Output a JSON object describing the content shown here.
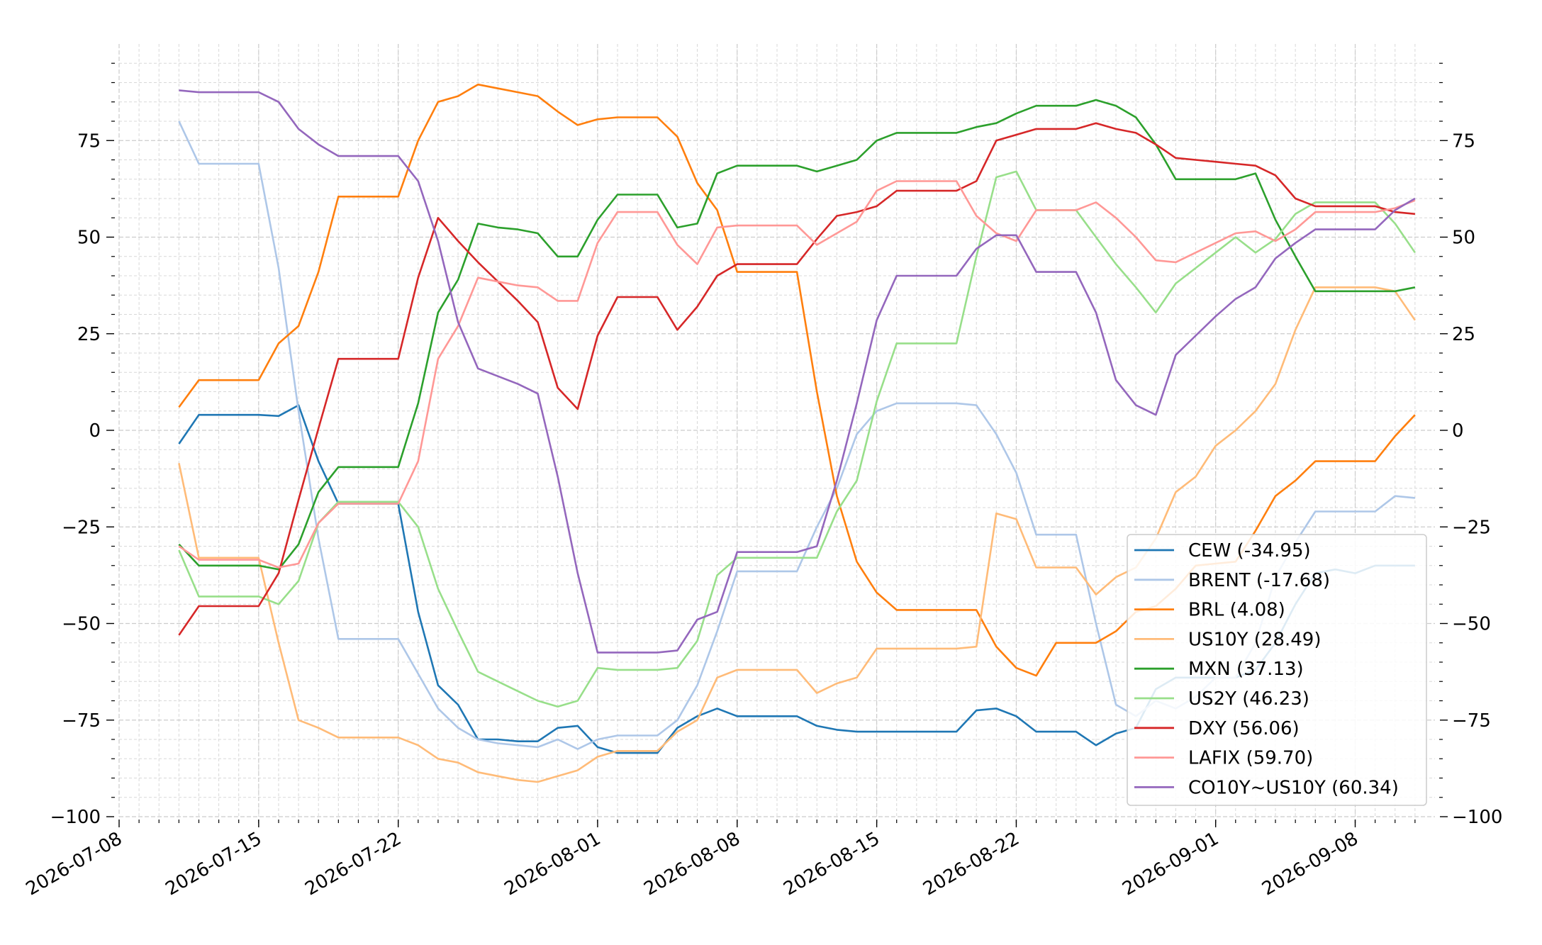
{
  "chart_data": {
    "type": "line",
    "x_type": "date",
    "xlim": [
      "2026-07-08",
      "2026-09-12"
    ],
    "ylim": [
      -100,
      100
    ],
    "x_ticks": [
      "2026-07-08",
      "2026-07-15",
      "2026-07-22",
      "2026-08-01",
      "2026-08-08",
      "2026-08-15",
      "2026-08-22",
      "2026-09-01",
      "2026-09-08"
    ],
    "y_ticks": [
      -100,
      -75,
      -50,
      -25,
      0,
      25,
      50,
      75
    ],
    "y_tick_labels": [
      "−100",
      "−75",
      "−50",
      "−25",
      "0",
      "25",
      "50",
      "75"
    ],
    "grid": true,
    "right_axis": true,
    "legend_position": "lower-right",
    "x": [
      "2026-07-11",
      "2026-07-12",
      "2026-07-13",
      "2026-07-14",
      "2026-07-15",
      "2026-07-16",
      "2026-07-17",
      "2026-07-18",
      "2026-07-19",
      "2026-07-20",
      "2026-07-21",
      "2026-07-22",
      "2026-07-23",
      "2026-07-24",
      "2026-07-25",
      "2026-07-26",
      "2026-07-27",
      "2026-07-28",
      "2026-07-29",
      "2026-07-30",
      "2026-07-31",
      "2026-08-01",
      "2026-08-02",
      "2026-08-03",
      "2026-08-04",
      "2026-08-05",
      "2026-08-06",
      "2026-08-07",
      "2026-08-08",
      "2026-08-09",
      "2026-08-10",
      "2026-08-11",
      "2026-08-12",
      "2026-08-13",
      "2026-08-14",
      "2026-08-15",
      "2026-08-16",
      "2026-08-17",
      "2026-08-18",
      "2026-08-19",
      "2026-08-20",
      "2026-08-21",
      "2026-08-22",
      "2026-08-23",
      "2026-08-24",
      "2026-08-25",
      "2026-08-26",
      "2026-08-27",
      "2026-08-28",
      "2026-08-29",
      "2026-08-30",
      "2026-08-31",
      "2026-09-01",
      "2026-09-02",
      "2026-09-03",
      "2026-09-04",
      "2026-09-05",
      "2026-09-06",
      "2026-09-07",
      "2026-09-08",
      "2026-09-09",
      "2026-09-10",
      "2026-09-11"
    ],
    "series": [
      {
        "name": "CEW (-34.95)",
        "color": "#1f77b4",
        "values": [
          -3.5,
          4,
          4,
          4,
          4,
          3.7,
          6.5,
          -8,
          -19,
          -19,
          -19,
          -19,
          -47,
          -66,
          -71,
          -80,
          -80,
          -80.5,
          -80.5,
          -77,
          -76.5,
          -82,
          -83.5,
          -83.5,
          -83.5,
          -77,
          -74,
          -72,
          -74,
          -74,
          -74,
          -74,
          -76.5,
          -77.5,
          -78,
          -78,
          -78,
          -78,
          -78,
          -78,
          -72.5,
          -72,
          -74,
          -78,
          -78,
          -78,
          -81.5,
          -78.5,
          -77,
          -67,
          -64,
          -64,
          -64,
          -64,
          -62,
          -55,
          -45,
          -37,
          -36,
          -37,
          -35,
          -35,
          -35
        ]
      },
      {
        "name": "BRENT (-17.68)",
        "color": "#aec7e8",
        "values": [
          80,
          69,
          69,
          69,
          69,
          42,
          5,
          -28,
          -54,
          -54,
          -54,
          -54,
          -63,
          -72,
          -77,
          -80,
          -81,
          -81.5,
          -82,
          -80,
          -82.5,
          -80,
          -79,
          -79,
          -79,
          -75,
          -66,
          -52,
          -36.5,
          -36.5,
          -36.5,
          -36.5,
          -25,
          -15,
          -1,
          5,
          7,
          7,
          7,
          7,
          6.5,
          -1,
          -11,
          -27,
          -27,
          -27,
          -50,
          -71,
          -74,
          -70,
          -72,
          -69,
          -64,
          -64,
          -55,
          -38,
          -29,
          -21,
          -21,
          -21,
          -21,
          -17,
          -17.5
        ]
      },
      {
        "name": "BRL (4.08)",
        "color": "#ff7f0e",
        "values": [
          6,
          13,
          13,
          13,
          13,
          22.5,
          27,
          41,
          60.5,
          60.5,
          60.5,
          60.5,
          75,
          85,
          86.5,
          89.5,
          88.5,
          87.5,
          86.5,
          82.5,
          79,
          80.5,
          81,
          81,
          81,
          76,
          64,
          57,
          41,
          41,
          41,
          41,
          10,
          -17,
          -34,
          -42,
          -46.5,
          -46.5,
          -46.5,
          -46.5,
          -46.5,
          -56,
          -61.5,
          -63.5,
          -55,
          -55,
          -55,
          -52,
          -47,
          -45.5,
          -41,
          -35,
          -34.5,
          -34,
          -26,
          -17,
          -13,
          -8,
          -8,
          -8,
          -8,
          -1.5,
          4
        ]
      },
      {
        "name": "US10Y (28.49)",
        "color": "#ffbb78",
        "values": [
          -8.5,
          -33,
          -33,
          -33,
          -33,
          -55,
          -75,
          -77,
          -79.5,
          -79.5,
          -79.5,
          -79.5,
          -81.5,
          -85,
          -86,
          -88.5,
          -89.5,
          -90.5,
          -91,
          -89.5,
          -88,
          -84.5,
          -83,
          -83,
          -83,
          -78,
          -75,
          -64,
          -62,
          -62,
          -62,
          -62,
          -68,
          -65.5,
          -64,
          -56.5,
          -56.5,
          -56.5,
          -56.5,
          -56.5,
          -56,
          -21.5,
          -23,
          -35.5,
          -35.5,
          -35.5,
          -42.5,
          -38,
          -35.5,
          -28,
          -16,
          -12,
          -4,
          0,
          5,
          12,
          26,
          37,
          37,
          37,
          37,
          36,
          28.5
        ]
      },
      {
        "name": "MXN (37.13)",
        "color": "#2ca02c",
        "values": [
          -29.5,
          -35,
          -35,
          -35,
          -35,
          -36,
          -29.5,
          -16,
          -9.5,
          -9.5,
          -9.5,
          -9.5,
          7,
          30.5,
          39,
          53.5,
          52.5,
          52,
          51,
          45,
          45,
          54.5,
          61,
          61,
          61,
          52.5,
          53.5,
          66.5,
          68.5,
          68.5,
          68.5,
          68.5,
          67,
          68.5,
          70,
          75,
          77,
          77,
          77,
          77,
          78.5,
          79.5,
          82,
          84,
          84,
          84,
          85.5,
          84,
          81,
          74,
          65,
          65,
          65,
          65,
          66.5,
          54.5,
          45,
          36,
          36,
          36,
          36,
          36,
          37
        ]
      },
      {
        "name": "US2Y (46.23)",
        "color": "#98df8a",
        "values": [
          -31,
          -43,
          -43,
          -43,
          -43,
          -45,
          -39,
          -24,
          -18.5,
          -18.5,
          -18.5,
          -18.5,
          -25,
          -41,
          -52,
          -62.5,
          -65,
          -67.5,
          -70,
          -71.5,
          -70,
          -61.5,
          -62,
          -62,
          -62,
          -61.5,
          -54.5,
          -37.5,
          -33,
          -33,
          -33,
          -33,
          -33,
          -21,
          -13,
          7.5,
          22.5,
          22.5,
          22.5,
          22.5,
          45,
          65.5,
          67,
          57,
          57,
          57,
          50,
          43,
          37,
          30.5,
          38,
          42,
          46,
          50,
          46,
          49.5,
          56,
          59,
          59,
          59,
          59,
          53.5,
          46
        ]
      },
      {
        "name": "DXY (56.06)",
        "color": "#d62728",
        "values": [
          -53,
          -45.5,
          -45.5,
          -45.5,
          -45.5,
          -37,
          -18,
          0.5,
          18.5,
          18.5,
          18.5,
          18.5,
          39.5,
          55,
          49,
          43.5,
          38.5,
          33.5,
          28,
          11,
          5.5,
          24.5,
          34.5,
          34.5,
          34.5,
          26,
          32,
          40,
          43,
          43,
          43,
          43,
          49.5,
          55.5,
          56.5,
          58,
          62,
          62,
          62,
          62,
          64.5,
          75,
          76.5,
          78,
          78,
          78,
          79.5,
          78,
          77,
          74,
          70.5,
          70,
          69.5,
          69,
          68.5,
          66,
          60,
          58,
          58,
          58,
          58,
          56.5,
          56
        ]
      },
      {
        "name": "LAFIX (59.70)",
        "color": "#ff9896",
        "values": [
          -30,
          -33.5,
          -33.5,
          -33.5,
          -33.5,
          -35.5,
          -34.5,
          -24,
          -19,
          -19,
          -19,
          -19,
          -8,
          18.5,
          27,
          39.5,
          38.5,
          37.5,
          37,
          33.5,
          33.5,
          48.5,
          56.5,
          56.5,
          56.5,
          48,
          43,
          52.5,
          53,
          53,
          53,
          53,
          48,
          51,
          54,
          62,
          64.5,
          64.5,
          64.5,
          64.5,
          55.5,
          51,
          49,
          57,
          57,
          57,
          59,
          55,
          50,
          44,
          43.5,
          46,
          48.5,
          51,
          51.5,
          49,
          52,
          56.5,
          56.5,
          56.5,
          56.5,
          57.5,
          59.5
        ]
      },
      {
        "name": "CO10Y~US10Y (60.34)",
        "color": "#9467bd",
        "values": [
          88,
          87.5,
          87.5,
          87.5,
          87.5,
          85,
          78,
          74,
          71,
          71,
          71,
          71,
          64.5,
          49,
          28,
          16,
          14,
          12,
          9.5,
          -12,
          -37,
          -57.5,
          -57.5,
          -57.5,
          -57.5,
          -57,
          -49,
          -47,
          -31.5,
          -31.5,
          -31.5,
          -31.5,
          -30,
          -13,
          7,
          28.5,
          40,
          40,
          40,
          40,
          47,
          50.5,
          50.5,
          41,
          41,
          41,
          30.5,
          13,
          6.5,
          4,
          19.5,
          24.5,
          29.5,
          34,
          37,
          44.5,
          48.5,
          52,
          52,
          52,
          52,
          57,
          60
        ]
      }
    ]
  }
}
